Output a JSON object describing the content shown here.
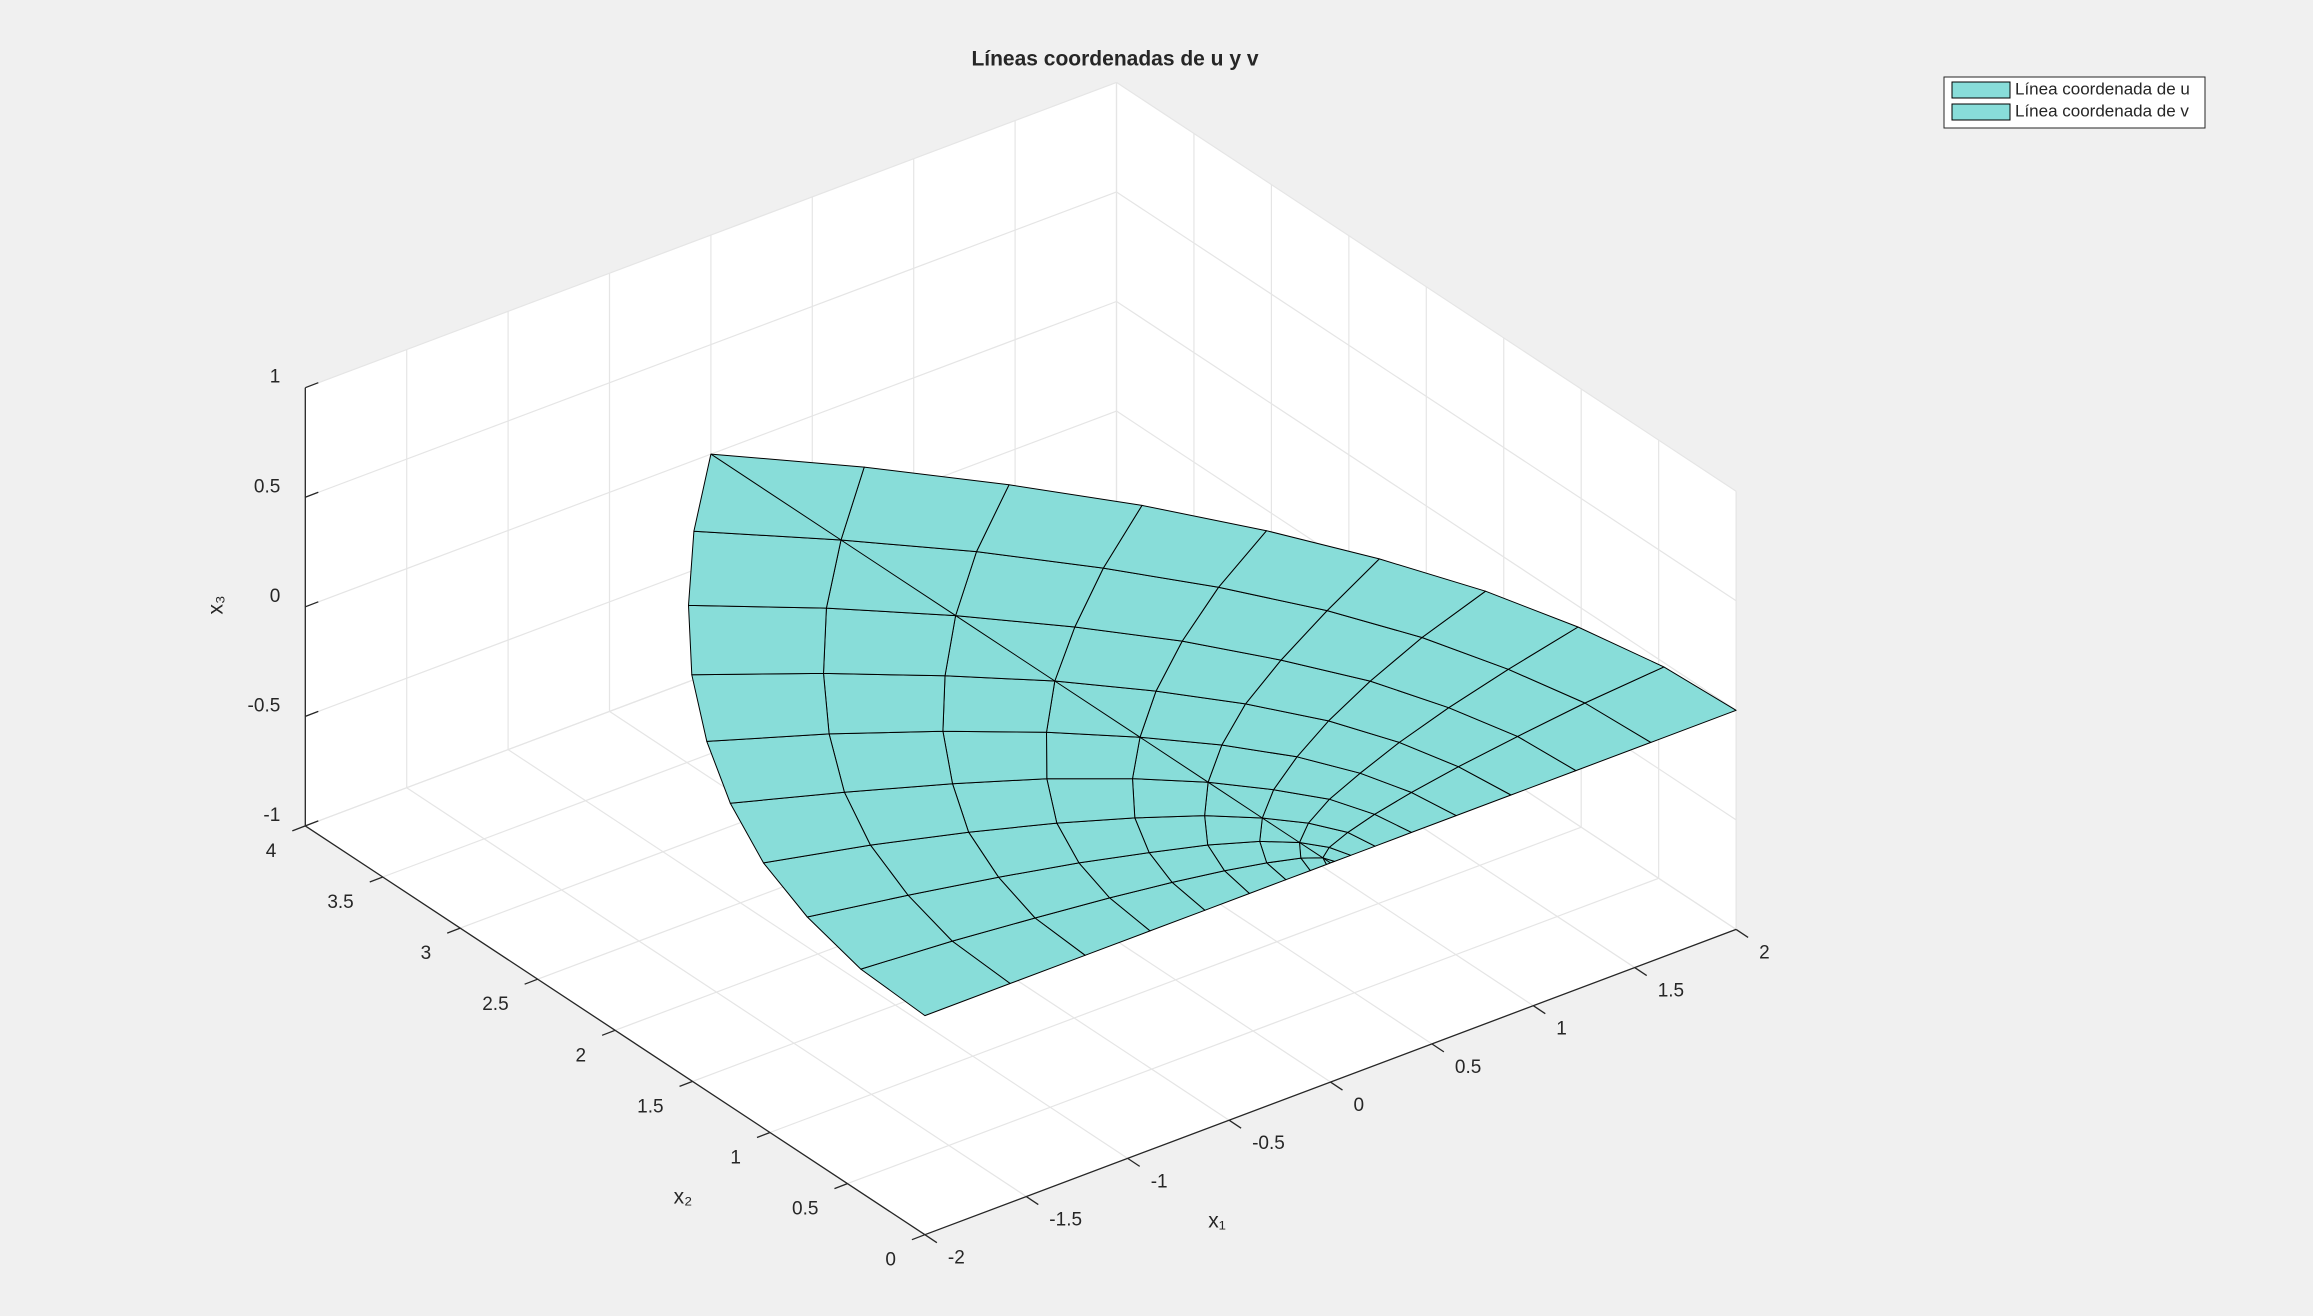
{
  "chart_data": {
    "type": "surface",
    "title": "Líneas coordenadas de u y v",
    "xlabel": "x₁",
    "ylabel": "x₂",
    "zlabel": "x₃",
    "xlim": [
      -2,
      2
    ],
    "ylim": [
      0,
      4
    ],
    "zlim": [
      -1,
      1
    ],
    "xticks": [
      -2,
      -1.5,
      -1,
      -0.5,
      0,
      0.5,
      1,
      1.5,
      2
    ],
    "yticks": [
      0,
      0.5,
      1,
      1.5,
      2,
      2.5,
      3,
      3.5,
      4
    ],
    "zticks": [
      -1,
      -0.5,
      0,
      0.5,
      1
    ],
    "grid": true,
    "legend": "upper right",
    "series": [
      {
        "name": "Línea coordenada de u",
        "color": "#88ddd9"
      },
      {
        "name": "Línea coordenada de v",
        "color": "#88ddd9"
      }
    ],
    "surface": {
      "x1": [
        [
          0,
          -0.02,
          -0.1,
          -0.22,
          -0.4,
          -0.62,
          -0.89,
          -1.21,
          -1.58,
          -2
        ],
        [
          0.02,
          0,
          -0.07,
          -0.2,
          -0.37,
          -0.59,
          -0.86,
          -1.19,
          -1.56,
          -1.98
        ],
        [
          0.1,
          0.07,
          0,
          -0.12,
          -0.3,
          -0.52,
          -0.79,
          -1.11,
          -1.48,
          -1.9
        ],
        [
          0.22,
          0.2,
          0.12,
          0,
          -0.17,
          -0.4,
          -0.67,
          -0.99,
          -1.36,
          -1.78
        ],
        [
          0.4,
          0.37,
          0.3,
          0.17,
          0,
          -0.22,
          -0.49,
          -0.81,
          -1.19,
          -1.6
        ],
        [
          0.62,
          0.59,
          0.52,
          0.4,
          0.22,
          0,
          -0.27,
          -0.59,
          -0.96,
          -1.38
        ],
        [
          0.89,
          0.86,
          0.79,
          0.67,
          0.49,
          0.27,
          0,
          -0.32,
          -0.69,
          -1.11
        ],
        [
          1.21,
          1.19,
          1.11,
          0.99,
          0.81,
          0.59,
          0.32,
          0,
          -0.37,
          -0.79
        ],
        [
          1.58,
          1.56,
          1.48,
          1.36,
          1.19,
          0.96,
          0.69,
          0.37,
          0,
          -0.42
        ],
        [
          2,
          1.98,
          1.9,
          1.78,
          1.6,
          1.38,
          1.11,
          0.79,
          0.42,
          0
        ]
      ],
      "x2": [
        [
          0,
          0,
          0,
          0,
          0,
          0,
          0,
          0,
          0,
          0
        ],
        [
          0,
          0.05,
          0.1,
          0.15,
          0.2,
          0.25,
          0.3,
          0.35,
          0.4,
          0.44
        ],
        [
          0,
          0.1,
          0.2,
          0.3,
          0.4,
          0.49,
          0.59,
          0.69,
          0.79,
          0.89
        ],
        [
          0,
          0.15,
          0.3,
          0.44,
          0.59,
          0.74,
          0.89,
          1.04,
          1.19,
          1.33
        ],
        [
          0,
          0.2,
          0.4,
          0.59,
          0.79,
          0.99,
          1.19,
          1.38,
          1.58,
          1.78
        ],
        [
          0,
          0.25,
          0.49,
          0.74,
          0.99,
          1.23,
          1.48,
          1.73,
          1.98,
          2.22
        ],
        [
          0,
          0.3,
          0.59,
          0.89,
          1.19,
          1.48,
          1.78,
          2.07,
          2.37,
          2.67
        ],
        [
          0,
          0.35,
          0.69,
          1.04,
          1.38,
          1.73,
          2.07,
          2.42,
          2.77,
          3.11
        ],
        [
          0,
          0.4,
          0.79,
          1.19,
          1.58,
          1.98,
          2.37,
          2.77,
          3.16,
          3.56
        ],
        [
          0,
          0.44,
          0.89,
          1.33,
          1.78,
          2.22,
          2.67,
          3.11,
          3.56,
          4
        ]
      ],
      "x3": [
        [
          0,
          0,
          0,
          0,
          0,
          0,
          0,
          0,
          0,
          0
        ],
        [
          0,
          0,
          0,
          0,
          0,
          0,
          0,
          0,
          0,
          0
        ],
        [
          0,
          0,
          0,
          0,
          0,
          0,
          0,
          0,
          0,
          0
        ],
        [
          0,
          0,
          0,
          0,
          0,
          0,
          0,
          0,
          0,
          0
        ],
        [
          0,
          0,
          0,
          0,
          0,
          0,
          0,
          0,
          0,
          0
        ],
        [
          0,
          0,
          0,
          0,
          0,
          0,
          0,
          0,
          0,
          0
        ],
        [
          0,
          0,
          0,
          0,
          0,
          0,
          0,
          0,
          0,
          0
        ],
        [
          0,
          0,
          0,
          0,
          0,
          0,
          0,
          0,
          0,
          0
        ],
        [
          0,
          0,
          0,
          0,
          0,
          0,
          0,
          0,
          0,
          0
        ],
        [
          0,
          0,
          0,
          0,
          0,
          0,
          0,
          0,
          0,
          0
        ]
      ]
    }
  }
}
